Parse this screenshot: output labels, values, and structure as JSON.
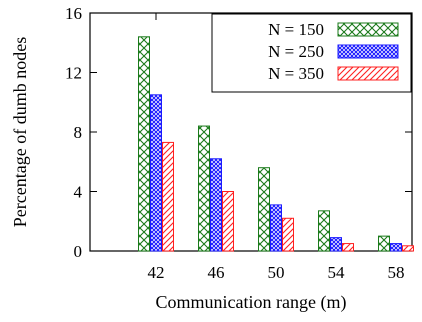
{
  "chart_data": {
    "type": "bar",
    "xlabel": "Communication range (m)",
    "ylabel": "Percentage of dumb nodes",
    "categories": [
      "42",
      "46",
      "50",
      "54",
      "58"
    ],
    "ylim": [
      0,
      16
    ],
    "yticks": [
      "0",
      "4",
      "8",
      "12",
      "16"
    ],
    "legend_position": "top-right",
    "grid": false,
    "series": [
      {
        "name": "N = 150",
        "values": [
          14.4,
          8.4,
          5.6,
          2.7,
          1.0
        ],
        "color": "#1a7a1a",
        "pattern": "crosshatch"
      },
      {
        "name": "N = 250",
        "values": [
          10.5,
          6.2,
          3.1,
          0.9,
          0.5
        ],
        "color": "#1a1aff",
        "pattern": "dense-crosshatch"
      },
      {
        "name": "N = 350",
        "values": [
          7.3,
          4.0,
          2.2,
          0.5,
          0.35
        ],
        "color": "#ff2020",
        "pattern": "diagonal"
      }
    ]
  }
}
